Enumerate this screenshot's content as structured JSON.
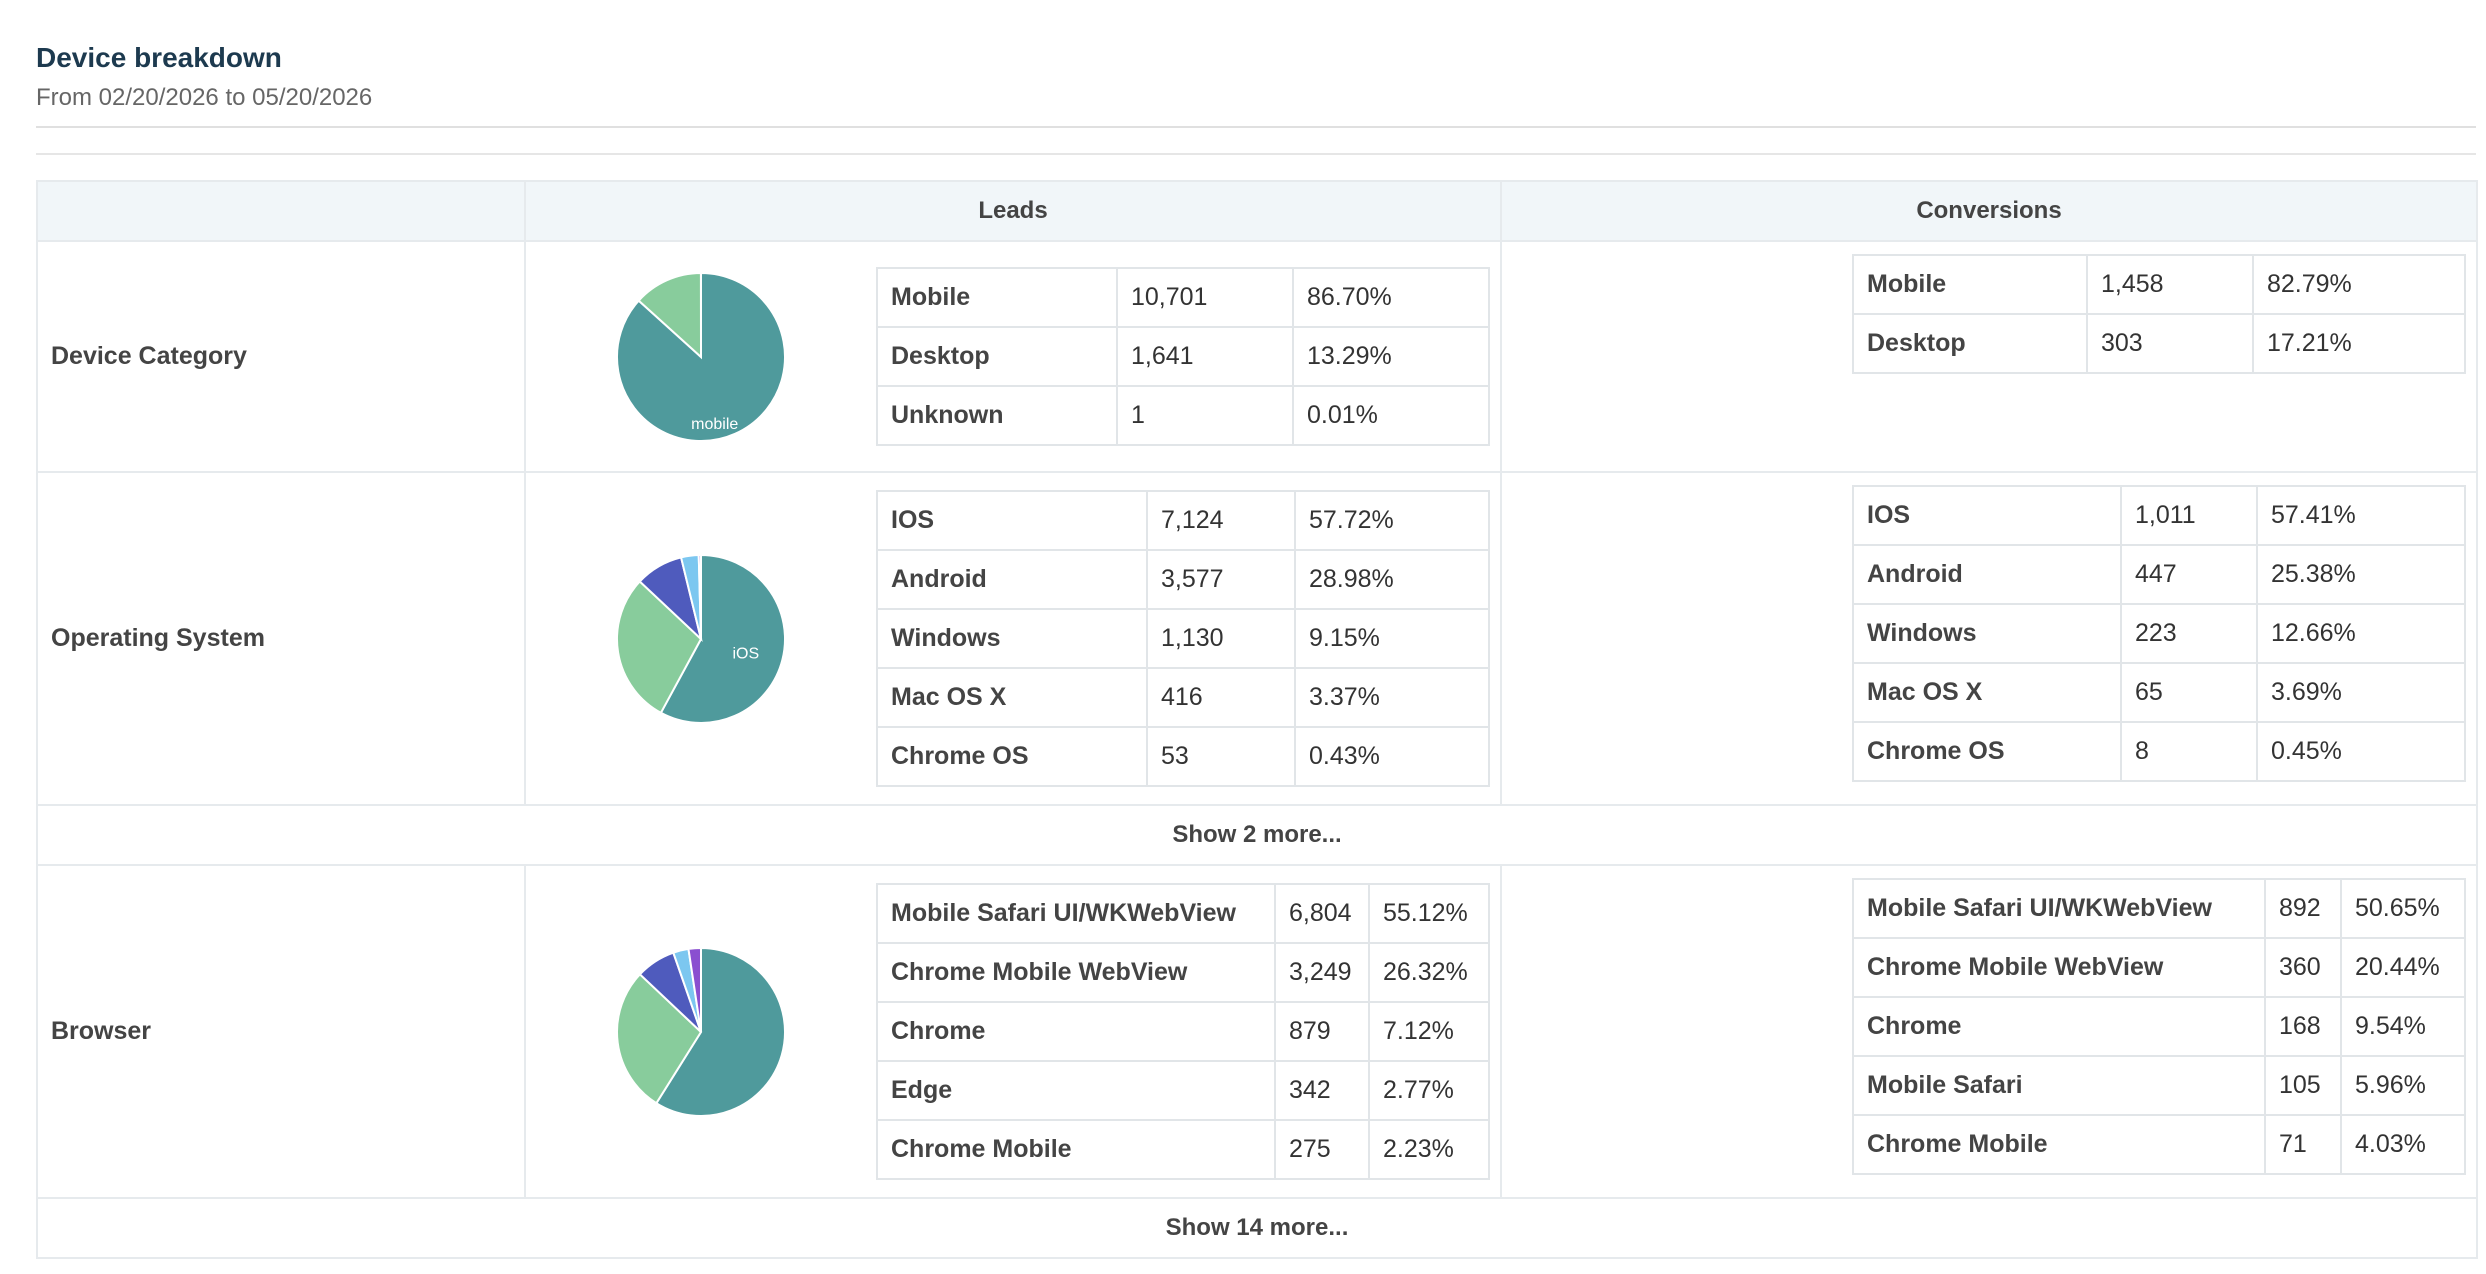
{
  "header": {
    "title": "Device breakdown",
    "subtitle": "From 02/20/2026 to 05/20/2026"
  },
  "columns": {
    "leads": "Leads",
    "conversions": "Conversions"
  },
  "colors": {
    "teal": "#4f9a9c",
    "green": "#88cc9c",
    "indigo": "#4f5bbd",
    "lightblue": "#7cc7f0"
  },
  "sections": [
    {
      "label": "Device Category",
      "pie_label": "mobile",
      "leads": [
        {
          "name": "Mobile",
          "count": "10,701",
          "pct": "86.70%"
        },
        {
          "name": "Desktop",
          "count": "1,641",
          "pct": "13.29%"
        },
        {
          "name": "Unknown",
          "count": "1",
          "pct": "0.01%"
        }
      ],
      "conversions": [
        {
          "name": "Mobile",
          "count": "1,458",
          "pct": "82.79%"
        },
        {
          "name": "Desktop",
          "count": "303",
          "pct": "17.21%"
        }
      ],
      "show_more": ""
    },
    {
      "label": "Operating System",
      "pie_label": "iOS",
      "leads": [
        {
          "name": "IOS",
          "count": "7,124",
          "pct": "57.72%"
        },
        {
          "name": "Android",
          "count": "3,577",
          "pct": "28.98%"
        },
        {
          "name": "Windows",
          "count": "1,130",
          "pct": "9.15%"
        },
        {
          "name": "Mac OS X",
          "count": "416",
          "pct": "3.37%"
        },
        {
          "name": "Chrome OS",
          "count": "53",
          "pct": "0.43%"
        }
      ],
      "conversions": [
        {
          "name": "IOS",
          "count": "1,011",
          "pct": "57.41%"
        },
        {
          "name": "Android",
          "count": "447",
          "pct": "25.38%"
        },
        {
          "name": "Windows",
          "count": "223",
          "pct": "12.66%"
        },
        {
          "name": "Mac OS X",
          "count": "65",
          "pct": "3.69%"
        },
        {
          "name": "Chrome OS",
          "count": "8",
          "pct": "0.45%"
        }
      ],
      "show_more": "Show 2 more..."
    },
    {
      "label": "Browser",
      "pie_label": "",
      "leads": [
        {
          "name": "Mobile Safari UI/WKWebView",
          "count": "6,804",
          "pct": "55.12%"
        },
        {
          "name": "Chrome Mobile WebView",
          "count": "3,249",
          "pct": "26.32%"
        },
        {
          "name": "Chrome",
          "count": "879",
          "pct": "7.12%"
        },
        {
          "name": "Edge",
          "count": "342",
          "pct": "2.77%"
        },
        {
          "name": "Chrome Mobile",
          "count": "275",
          "pct": "2.23%"
        }
      ],
      "conversions": [
        {
          "name": "Mobile Safari UI/WKWebView",
          "count": "892",
          "pct": "50.65%"
        },
        {
          "name": "Chrome Mobile WebView",
          "count": "360",
          "pct": "20.44%"
        },
        {
          "name": "Chrome",
          "count": "168",
          "pct": "9.54%"
        },
        {
          "name": "Mobile Safari",
          "count": "105",
          "pct": "5.96%"
        },
        {
          "name": "Chrome Mobile",
          "count": "71",
          "pct": "4.03%"
        }
      ],
      "show_more": "Show 14 more..."
    }
  ],
  "chart_data": [
    {
      "type": "pie",
      "labels": [
        "Mobile",
        "Desktop",
        "Unknown"
      ],
      "values": [
        86.7,
        13.29,
        0.01
      ],
      "colors": [
        "#4f9a9c",
        "#88cc9c",
        "#4f5bbd"
      ]
    },
    {
      "type": "pie",
      "labels": [
        "IOS",
        "Android",
        "Windows",
        "Mac OS X",
        "Chrome OS"
      ],
      "values": [
        57.72,
        28.98,
        9.15,
        3.37,
        0.43
      ],
      "colors": [
        "#4f9a9c",
        "#88cc9c",
        "#4f5bbd",
        "#7cc7f0",
        "#8a4fd0"
      ]
    },
    {
      "type": "pie",
      "labels": [
        "Mobile Safari UI/WKWebView",
        "Chrome Mobile WebView",
        "Chrome",
        "Edge",
        "Chrome Mobile"
      ],
      "values": [
        55.12,
        26.32,
        7.12,
        2.77,
        2.23
      ],
      "colors": [
        "#4f9a9c",
        "#88cc9c",
        "#4f5bbd",
        "#7cc7f0",
        "#8a4fd0"
      ]
    }
  ]
}
